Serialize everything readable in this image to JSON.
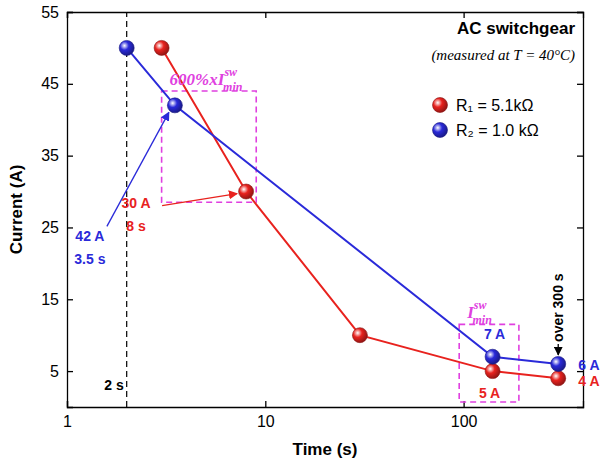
{
  "chart_data": {
    "type": "line",
    "title": "AC switchgear",
    "subtitle": "(measured at T = 40°C)",
    "x_label": "Time (s)",
    "y_label": "Current (A)",
    "log": "x",
    "grid": false,
    "legend": "upper right",
    "xlim": [
      1,
      400
    ],
    "xticks": [
      1,
      10,
      100
    ],
    "ylim": [
      0,
      55
    ],
    "yticks": [
      5,
      15,
      25,
      35,
      45,
      55
    ],
    "series": [
      {
        "name": "R₁ = 5.1kΩ",
        "color": "#e8221e",
        "marker": "circle",
        "line_style": "solid",
        "x": [
          3,
          8,
          30,
          140,
          300
        ],
        "values": [
          50,
          30,
          10,
          5,
          4
        ]
      },
      {
        "name": "R₂ = 1.0 kΩ",
        "color": "#2a2ad9",
        "marker": "circle",
        "line_style": "solid",
        "x": [
          2,
          3.5,
          140,
          300
        ],
        "values": [
          50,
          42,
          7,
          6
        ]
      }
    ],
    "shapes": [
      {
        "type": "vline",
        "x": 2,
        "line_style": "dashed",
        "color": "#000000",
        "text": "2 s"
      },
      {
        "type": "box",
        "x": [
          3,
          9
        ],
        "y": [
          28.5,
          44
        ],
        "line_style": "dashed",
        "color": "#e040e0",
        "text": "600%xI",
        "sub": "min",
        "sup": "sw"
      },
      {
        "type": "box",
        "x": [
          95,
          190
        ],
        "y": [
          0.7,
          11.5
        ],
        "line_style": "dashed",
        "color": "#e040e0",
        "text": "I",
        "sub": "min",
        "sup": "sw"
      }
    ],
    "labels": [
      {
        "text": "42 A",
        "color": "#2a2ad9",
        "x": 3.5,
        "y": 42
      },
      {
        "text": "3.5 s",
        "color": "#2a2ad9",
        "x": 3.5,
        "y": 42
      },
      {
        "text": "30 A",
        "color": "#e8221e",
        "x": 8,
        "y": 30
      },
      {
        "text": "8 s",
        "color": "#e8221e",
        "x": 8,
        "y": 30
      },
      {
        "text": "7 A",
        "color": "#2a2ad9",
        "x": 140,
        "y": 7
      },
      {
        "text": "5 A",
        "color": "#e8221e",
        "x": 140,
        "y": 5
      },
      {
        "text": "6 A",
        "color": "#2a2ad9",
        "x": 300,
        "y": 6
      },
      {
        "text": "4 A",
        "color": "#e8221e",
        "x": 300,
        "y": 4
      },
      {
        "text": "over 300 s",
        "color": "#000000",
        "x": 300,
        "y": 6
      }
    ]
  }
}
